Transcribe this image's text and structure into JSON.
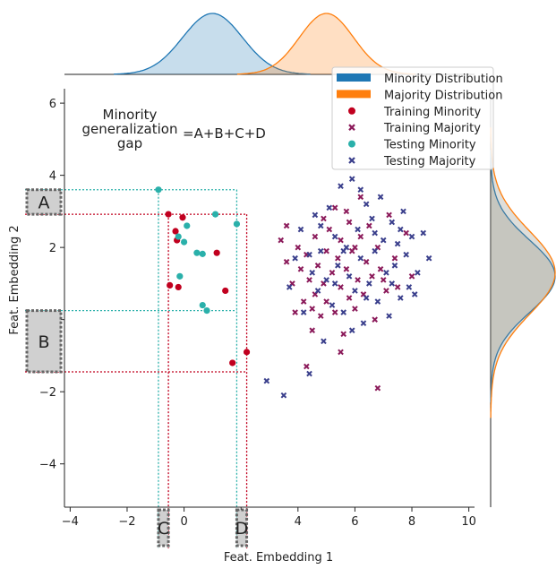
{
  "chart_data": {
    "type": "scatter",
    "xlabel": "Feat. Embedding 1",
    "ylabel": "Feat. Embedding 2",
    "xlim": [
      -4.2,
      10.2
    ],
    "ylim": [
      -5.2,
      6.4
    ],
    "xticks": [
      -4,
      -2,
      0,
      2,
      4,
      6,
      8,
      10
    ],
    "yticks": [
      -4,
      -2,
      0,
      2,
      4,
      6
    ],
    "annotation": {
      "title_lines": [
        "Minority",
        "generalization",
        "gap"
      ],
      "equation": "=A+B+C+D"
    },
    "gap_labels": [
      "A",
      "B",
      "C",
      "D"
    ],
    "gap_bounds": {
      "train_x": [
        -0.55,
        2.2
      ],
      "train_y": [
        -1.45,
        2.92
      ],
      "test_x": [
        -0.9,
        1.85
      ],
      "test_y": [
        0.25,
        3.6
      ]
    },
    "colors": {
      "minority_dist": "#1f77b4",
      "majority_dist": "#ff7f0e",
      "training_minority": "#c1001f",
      "training_majority": "#8b1a5a",
      "testing_minority": "#2ab0aa",
      "testing_majority": "#3a3f8c"
    },
    "legend": {
      "placement": "top-right",
      "entries": [
        {
          "label": "Minority Distribution",
          "kind": "line",
          "color": "#1f77b4"
        },
        {
          "label": "Majority Distribution",
          "kind": "line",
          "color": "#ff7f0e"
        },
        {
          "label": "Training Minority",
          "kind": "dot",
          "color": "#c1001f"
        },
        {
          "label": "Training Majority",
          "kind": "cross",
          "color": "#8b1a5a"
        },
        {
          "label": "Testing Minority",
          "kind": "dot",
          "color": "#2ab0aa"
        },
        {
          "label": "Testing Majority",
          "kind": "cross",
          "color": "#3a3f8c"
        }
      ]
    },
    "marginal_x": [
      {
        "name": "Minority Distribution",
        "mean": 1.0,
        "sd": 1.05,
        "color": "#1f77b4"
      },
      {
        "name": "Majority Distribution",
        "mean": 5.0,
        "sd": 0.95,
        "color": "#ff7f0e"
      }
    ],
    "marginal_y": [
      {
        "name": "Minority Distribution",
        "mean": 1.2,
        "sd": 1.0,
        "color": "#1f77b4"
      },
      {
        "name": "Majority Distribution",
        "mean": 1.3,
        "sd": 1.15,
        "color": "#ff7f0e"
      }
    ],
    "series": [
      {
        "name": "Training Minority",
        "marker": "dot",
        "color": "#c1001f",
        "points": [
          [
            -0.55,
            2.92
          ],
          [
            -0.05,
            2.83
          ],
          [
            -0.3,
            2.45
          ],
          [
            -0.25,
            2.2
          ],
          [
            -0.5,
            0.95
          ],
          [
            -0.2,
            0.9
          ],
          [
            1.15,
            1.85
          ],
          [
            1.45,
            0.8
          ],
          [
            1.7,
            -1.2
          ],
          [
            2.2,
            -0.9
          ]
        ]
      },
      {
        "name": "Testing Minority",
        "marker": "dot",
        "color": "#2ab0aa",
        "points": [
          [
            -0.9,
            3.6
          ],
          [
            1.1,
            2.92
          ],
          [
            1.85,
            2.65
          ],
          [
            0.1,
            2.6
          ],
          [
            -0.2,
            2.3
          ],
          [
            0.0,
            2.15
          ],
          [
            0.45,
            1.85
          ],
          [
            0.65,
            1.82
          ],
          [
            -0.15,
            1.2
          ],
          [
            0.65,
            0.4
          ],
          [
            0.8,
            0.25
          ]
        ]
      },
      {
        "name": "Training Majority",
        "marker": "cross",
        "color": "#8b1a5a",
        "points": [
          [
            3.4,
            2.2
          ],
          [
            3.6,
            2.6
          ],
          [
            3.6,
            1.6
          ],
          [
            3.8,
            1.0
          ],
          [
            3.9,
            0.2
          ],
          [
            4.0,
            2.0
          ],
          [
            4.1,
            1.4
          ],
          [
            4.2,
            0.5
          ],
          [
            4.3,
            1.8
          ],
          [
            4.4,
            1.1
          ],
          [
            4.5,
            -0.3
          ],
          [
            4.6,
            0.7
          ],
          [
            4.6,
            2.3
          ],
          [
            4.7,
            1.5
          ],
          [
            4.8,
            0.1
          ],
          [
            4.9,
            2.8
          ],
          [
            4.9,
            1.0
          ],
          [
            5.0,
            0.5
          ],
          [
            5.0,
            1.9
          ],
          [
            5.1,
            2.5
          ],
          [
            5.2,
            1.3
          ],
          [
            5.3,
            0.2
          ],
          [
            5.3,
            3.1
          ],
          [
            5.4,
            1.7
          ],
          [
            5.5,
            0.9
          ],
          [
            5.5,
            2.2
          ],
          [
            5.6,
            -0.4
          ],
          [
            5.7,
            1.4
          ],
          [
            5.8,
            0.6
          ],
          [
            5.8,
            2.7
          ],
          [
            5.9,
            1.9
          ],
          [
            6.0,
            0.3
          ],
          [
            6.1,
            1.1
          ],
          [
            6.2,
            3.4
          ],
          [
            6.2,
            2.3
          ],
          [
            6.3,
            0.7
          ],
          [
            6.4,
            1.6
          ],
          [
            6.5,
            2.6
          ],
          [
            6.6,
            1.2
          ],
          [
            6.7,
            0.0
          ],
          [
            6.8,
            2.0
          ],
          [
            6.9,
            1.4
          ],
          [
            6.8,
            -1.9
          ],
          [
            7.1,
            0.8
          ],
          [
            7.2,
            2.9
          ],
          [
            7.4,
            1.7
          ],
          [
            7.5,
            0.9
          ],
          [
            7.8,
            2.4
          ],
          [
            8.0,
            1.2
          ],
          [
            4.3,
            -1.3
          ],
          [
            5.5,
            -0.9
          ],
          [
            6.0,
            2.0
          ],
          [
            4.5,
            0.3
          ],
          [
            5.7,
            3.0
          ],
          [
            7.0,
            1.1
          ]
        ]
      },
      {
        "name": "Testing Majority",
        "marker": "cross",
        "color": "#3a3f8c",
        "points": [
          [
            2.9,
            -1.7
          ],
          [
            3.5,
            -2.1
          ],
          [
            3.7,
            0.9
          ],
          [
            3.9,
            1.7
          ],
          [
            4.1,
            2.5
          ],
          [
            4.2,
            0.2
          ],
          [
            4.4,
            -1.5
          ],
          [
            4.5,
            1.3
          ],
          [
            4.6,
            2.9
          ],
          [
            4.7,
            0.8
          ],
          [
            4.8,
            1.9
          ],
          [
            4.9,
            -0.6
          ],
          [
            5.0,
            1.1
          ],
          [
            5.1,
            3.1
          ],
          [
            5.2,
            0.4
          ],
          [
            5.3,
            2.3
          ],
          [
            5.4,
            1.5
          ],
          [
            5.5,
            3.7
          ],
          [
            5.6,
            0.2
          ],
          [
            5.7,
            2.0
          ],
          [
            5.8,
            1.2
          ],
          [
            5.9,
            3.9
          ],
          [
            6.0,
            0.8
          ],
          [
            6.1,
            2.5
          ],
          [
            6.2,
            1.7
          ],
          [
            6.3,
            -0.1
          ],
          [
            6.4,
            3.2
          ],
          [
            6.5,
            1.0
          ],
          [
            6.6,
            2.8
          ],
          [
            6.7,
            1.9
          ],
          [
            6.8,
            0.5
          ],
          [
            6.9,
            3.4
          ],
          [
            7.0,
            2.2
          ],
          [
            7.1,
            1.3
          ],
          [
            7.2,
            0.1
          ],
          [
            7.3,
            2.7
          ],
          [
            7.4,
            1.5
          ],
          [
            7.5,
            2.1
          ],
          [
            7.6,
            0.6
          ],
          [
            7.7,
            3.0
          ],
          [
            7.8,
            1.8
          ],
          [
            7.9,
            0.9
          ],
          [
            8.0,
            2.3
          ],
          [
            8.2,
            1.3
          ],
          [
            8.4,
            2.4
          ],
          [
            8.6,
            1.7
          ],
          [
            8.1,
            0.7
          ],
          [
            5.9,
            -0.3
          ],
          [
            6.2,
            3.6
          ],
          [
            4.8,
            2.6
          ],
          [
            5.3,
            1.0
          ],
          [
            6.7,
            2.4
          ],
          [
            7.3,
            1.0
          ],
          [
            4.4,
            1.8
          ],
          [
            5.6,
            1.9
          ],
          [
            6.4,
            0.6
          ],
          [
            7.6,
            2.5
          ]
        ]
      }
    ]
  }
}
